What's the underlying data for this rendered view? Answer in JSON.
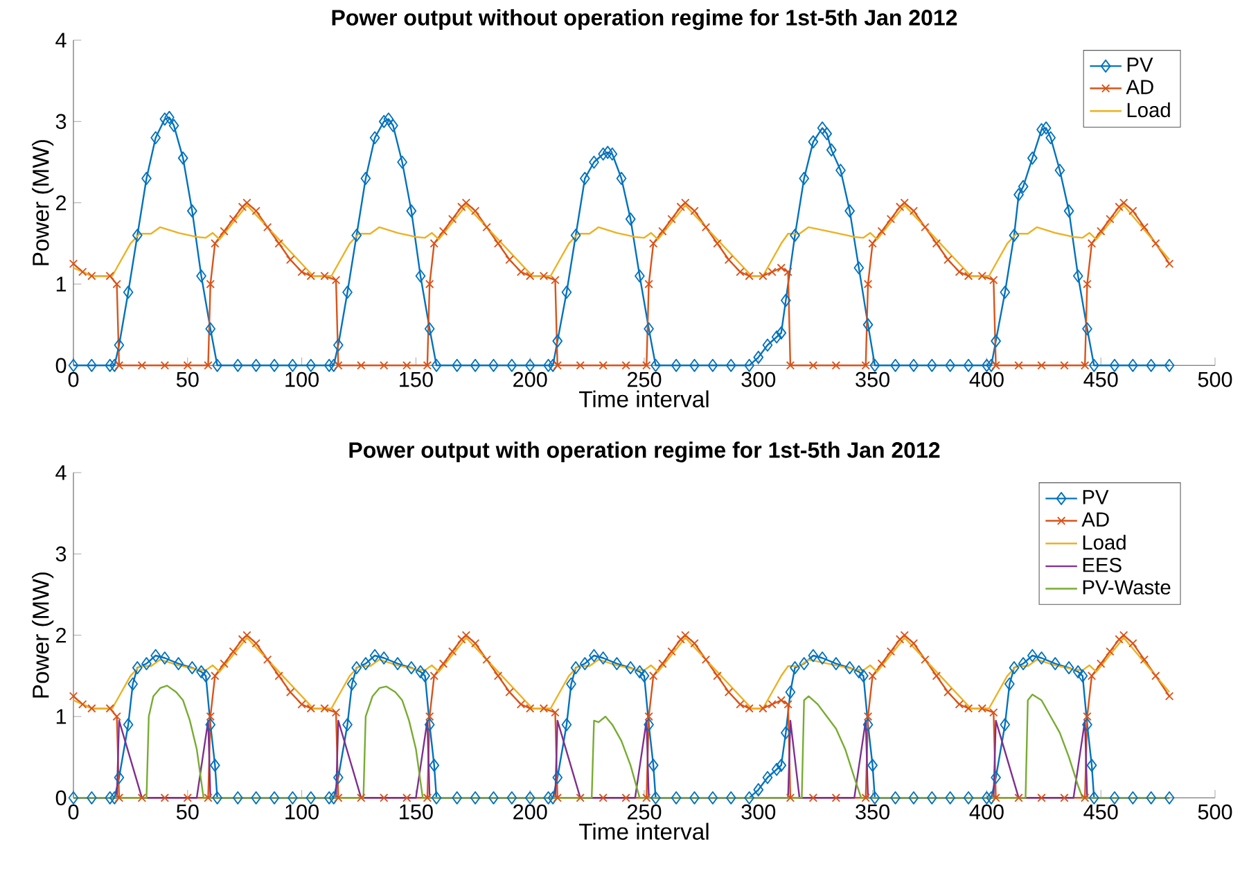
{
  "chart_data": [
    {
      "type": "line",
      "title": "Power output without operation regime for 1st-5th Jan 2012",
      "xlabel": "Time interval",
      "ylabel": "Power (MW)",
      "xlim": [
        0,
        500
      ],
      "xticks": [
        0,
        50,
        100,
        150,
        200,
        250,
        300,
        350,
        400,
        450,
        500
      ],
      "ylim": [
        0,
        4
      ],
      "yticks": [
        0,
        1,
        2,
        3,
        4
      ],
      "legend": "top right",
      "series": [
        {
          "name": "PV",
          "color": "#0072bd",
          "marker": "diamond",
          "x": [
            0,
            8,
            16,
            18,
            20,
            24,
            28,
            32,
            36,
            40,
            42,
            44,
            48,
            52,
            56,
            60,
            63,
            72,
            80,
            88,
            96,
            104,
            112,
            114,
            116,
            120,
            124,
            128,
            132,
            136,
            138,
            140,
            144,
            148,
            152,
            156,
            159,
            168,
            176,
            184,
            192,
            200,
            208,
            210,
            212,
            216,
            220,
            224,
            228,
            232,
            234,
            236,
            240,
            244,
            248,
            252,
            255,
            264,
            272,
            280,
            288,
            296,
            300,
            304,
            308,
            310,
            312,
            316,
            320,
            324,
            328,
            330,
            332,
            336,
            340,
            344,
            348,
            351,
            360,
            368,
            376,
            384,
            392,
            400,
            402,
            404,
            408,
            412,
            414,
            416,
            420,
            424,
            426,
            428,
            432,
            436,
            440,
            444,
            447,
            456,
            464,
            472,
            480
          ],
          "values": [
            0,
            0,
            0,
            0,
            0.25,
            0.9,
            1.6,
            2.3,
            2.8,
            3.03,
            3.05,
            2.95,
            2.55,
            1.9,
            1.1,
            0.45,
            0,
            0,
            0,
            0,
            0,
            0,
            0,
            0,
            0.25,
            0.9,
            1.6,
            2.3,
            2.8,
            3.0,
            3.03,
            2.95,
            2.5,
            1.9,
            1.1,
            0.45,
            0,
            0,
            0,
            0,
            0,
            0,
            0,
            0,
            0.3,
            0.9,
            1.6,
            2.3,
            2.5,
            2.6,
            2.62,
            2.6,
            2.3,
            1.8,
            1.1,
            0.45,
            0,
            0,
            0,
            0,
            0,
            0,
            0.1,
            0.25,
            0.35,
            0.4,
            0.8,
            1.6,
            2.3,
            2.75,
            2.92,
            2.85,
            2.65,
            2.4,
            1.9,
            1.2,
            0.5,
            0,
            0,
            0,
            0,
            0,
            0,
            0,
            0,
            0.3,
            0.9,
            1.6,
            2.1,
            2.2,
            2.55,
            2.9,
            2.92,
            2.8,
            2.4,
            1.9,
            1.1,
            0.45,
            0,
            0,
            0,
            0,
            0
          ]
        },
        {
          "name": "AD",
          "color": "#d95319",
          "marker": "cross",
          "x": [
            0,
            4,
            8,
            16,
            19,
            20,
            30,
            40,
            50,
            59,
            60,
            62,
            66,
            70,
            74,
            76,
            80,
            85,
            90,
            95,
            100,
            104,
            110,
            115,
            116,
            126,
            136,
            146,
            155,
            156,
            158,
            162,
            166,
            170,
            172,
            176,
            181,
            186,
            191,
            196,
            200,
            206,
            211,
            212,
            222,
            232,
            242,
            251,
            252,
            254,
            258,
            262,
            266,
            268,
            272,
            277,
            282,
            287,
            292,
            296,
            302,
            306,
            310,
            313,
            314,
            324,
            334,
            347,
            348,
            350,
            354,
            358,
            362,
            364,
            368,
            373,
            378,
            383,
            388,
            392,
            398,
            403,
            404,
            414,
            424,
            434,
            443,
            444,
            446,
            450,
            454,
            458,
            460,
            464,
            469,
            474,
            480
          ],
          "values": [
            1.25,
            1.15,
            1.1,
            1.1,
            1.0,
            0,
            0,
            0,
            0,
            0,
            1.0,
            1.5,
            1.65,
            1.8,
            1.95,
            2.0,
            1.9,
            1.7,
            1.5,
            1.3,
            1.15,
            1.1,
            1.1,
            1.05,
            0,
            0,
            0,
            0,
            0,
            1.0,
            1.5,
            1.65,
            1.8,
            1.95,
            2.0,
            1.9,
            1.7,
            1.5,
            1.3,
            1.15,
            1.1,
            1.1,
            1.05,
            0,
            0,
            0,
            0,
            0,
            1.0,
            1.5,
            1.65,
            1.8,
            1.95,
            2.0,
            1.9,
            1.7,
            1.5,
            1.3,
            1.15,
            1.1,
            1.1,
            1.15,
            1.2,
            1.15,
            0,
            0,
            0,
            0,
            1.0,
            1.5,
            1.65,
            1.8,
            1.95,
            2.0,
            1.9,
            1.7,
            1.5,
            1.3,
            1.15,
            1.1,
            1.1,
            1.05,
            0,
            0,
            0,
            0,
            0,
            1.0,
            1.5,
            1.65,
            1.8,
            1.95,
            2.0,
            1.9,
            1.7,
            1.5,
            1.25
          ]
        },
        {
          "name": "Load",
          "color": "#edb120",
          "marker": "none",
          "x": [
            0,
            8,
            17,
            21,
            25,
            29,
            34,
            38,
            46,
            54,
            58,
            61,
            64,
            76,
            105,
            113,
            117,
            121,
            125,
            130,
            134,
            142,
            150,
            154,
            157,
            160,
            172,
            201,
            209,
            213,
            217,
            221,
            226,
            230,
            238,
            246,
            250,
            253,
            256,
            268,
            297,
            302,
            306,
            310,
            313,
            318,
            322,
            334,
            342,
            346,
            349,
            352,
            364,
            393,
            401,
            405,
            409,
            413,
            418,
            422,
            430,
            438,
            442,
            445,
            448,
            460,
            480
          ],
          "values": [
            1.2,
            1.1,
            1.1,
            1.3,
            1.5,
            1.62,
            1.62,
            1.7,
            1.63,
            1.58,
            1.57,
            1.63,
            1.55,
            1.97,
            1.1,
            1.1,
            1.3,
            1.5,
            1.62,
            1.62,
            1.7,
            1.63,
            1.58,
            1.57,
            1.63,
            1.55,
            1.97,
            1.1,
            1.1,
            1.3,
            1.5,
            1.62,
            1.62,
            1.7,
            1.63,
            1.58,
            1.57,
            1.63,
            1.55,
            1.97,
            1.1,
            1.1,
            1.3,
            1.5,
            1.62,
            1.62,
            1.7,
            1.63,
            1.58,
            1.57,
            1.63,
            1.55,
            1.97,
            1.1,
            1.1,
            1.3,
            1.5,
            1.62,
            1.62,
            1.7,
            1.63,
            1.58,
            1.57,
            1.63,
            1.55,
            1.97,
            1.3
          ]
        }
      ]
    },
    {
      "type": "line",
      "title": "Power output with operation regime for 1st-5th Jan 2012",
      "xlabel": "Time interval",
      "ylabel": "Power (MW)",
      "xlim": [
        0,
        500
      ],
      "xticks": [
        0,
        50,
        100,
        150,
        200,
        250,
        300,
        350,
        400,
        450,
        500
      ],
      "ylim": [
        0,
        4
      ],
      "yticks": [
        0,
        1,
        2,
        3,
        4
      ],
      "legend": "top right",
      "series": [
        {
          "name": "PV",
          "color": "#0072bd",
          "marker": "diamond",
          "x": [
            0,
            8,
            16,
            18,
            20,
            24,
            26,
            28,
            32,
            36,
            40,
            46,
            52,
            56,
            58,
            60,
            62,
            63,
            72,
            80,
            88,
            96,
            104,
            112,
            114,
            116,
            120,
            122,
            124,
            128,
            132,
            136,
            142,
            148,
            152,
            154,
            156,
            158,
            159,
            168,
            176,
            184,
            192,
            200,
            208,
            210,
            212,
            216,
            218,
            220,
            224,
            228,
            232,
            238,
            244,
            248,
            250,
            252,
            254,
            255,
            264,
            272,
            280,
            288,
            296,
            300,
            304,
            308,
            310,
            312,
            314,
            316,
            320,
            324,
            328,
            334,
            340,
            344,
            346,
            348,
            350,
            351,
            360,
            368,
            376,
            384,
            392,
            400,
            402,
            404,
            408,
            410,
            412,
            416,
            420,
            424,
            430,
            436,
            440,
            442,
            444,
            446,
            447,
            456,
            464,
            472,
            480
          ],
          "values": [
            0,
            0,
            0,
            0,
            0.25,
            0.9,
            1.4,
            1.6,
            1.65,
            1.75,
            1.72,
            1.65,
            1.6,
            1.55,
            1.5,
            0.9,
            0.4,
            0,
            0,
            0,
            0,
            0,
            0,
            0,
            0,
            0.25,
            0.9,
            1.4,
            1.6,
            1.65,
            1.75,
            1.72,
            1.65,
            1.6,
            1.55,
            1.5,
            0.9,
            0.4,
            0,
            0,
            0,
            0,
            0,
            0,
            0,
            0,
            0.25,
            0.9,
            1.4,
            1.6,
            1.65,
            1.75,
            1.72,
            1.65,
            1.6,
            1.55,
            1.5,
            0.9,
            0.4,
            0,
            0,
            0,
            0,
            0,
            0,
            0.1,
            0.25,
            0.35,
            0.4,
            0.8,
            1.3,
            1.6,
            1.65,
            1.75,
            1.72,
            1.65,
            1.6,
            1.55,
            1.5,
            0.9,
            0.4,
            0,
            0,
            0,
            0,
            0,
            0,
            0,
            0,
            0.25,
            0.9,
            1.4,
            1.6,
            1.65,
            1.75,
            1.72,
            1.65,
            1.6,
            1.55,
            1.5,
            0.9,
            0.4,
            0,
            0,
            0,
            0,
            0
          ]
        },
        {
          "name": "AD",
          "color": "#d95319",
          "marker": "cross",
          "x": [
            0,
            4,
            8,
            16,
            19,
            20,
            30,
            40,
            50,
            59,
            60,
            62,
            66,
            70,
            74,
            76,
            80,
            85,
            90,
            95,
            100,
            104,
            110,
            115,
            116,
            126,
            136,
            146,
            155,
            156,
            158,
            162,
            166,
            170,
            172,
            176,
            181,
            186,
            191,
            196,
            200,
            206,
            211,
            212,
            222,
            232,
            242,
            251,
            252,
            254,
            258,
            262,
            266,
            268,
            272,
            277,
            282,
            287,
            292,
            296,
            302,
            306,
            310,
            313,
            314,
            324,
            334,
            347,
            348,
            350,
            354,
            358,
            362,
            364,
            368,
            373,
            378,
            383,
            388,
            392,
            398,
            403,
            404,
            414,
            424,
            434,
            443,
            444,
            446,
            450,
            454,
            458,
            460,
            464,
            469,
            474,
            480
          ],
          "values": [
            1.25,
            1.15,
            1.1,
            1.1,
            1.0,
            0,
            0,
            0,
            0,
            0,
            1.0,
            1.5,
            1.65,
            1.8,
            1.95,
            2.0,
            1.9,
            1.7,
            1.5,
            1.3,
            1.15,
            1.1,
            1.1,
            1.05,
            0,
            0,
            0,
            0,
            0,
            1.0,
            1.5,
            1.65,
            1.8,
            1.95,
            2.0,
            1.9,
            1.7,
            1.5,
            1.3,
            1.15,
            1.1,
            1.1,
            1.05,
            0,
            0,
            0,
            0,
            0,
            1.0,
            1.5,
            1.65,
            1.8,
            1.95,
            2.0,
            1.9,
            1.7,
            1.5,
            1.3,
            1.15,
            1.1,
            1.1,
            1.15,
            1.2,
            1.15,
            0,
            0,
            0,
            0,
            1.0,
            1.5,
            1.65,
            1.8,
            1.95,
            2.0,
            1.9,
            1.7,
            1.5,
            1.3,
            1.15,
            1.1,
            1.1,
            1.05,
            0,
            0,
            0,
            0,
            0,
            1.0,
            1.5,
            1.65,
            1.8,
            1.95,
            2.0,
            1.9,
            1.7,
            1.5,
            1.25
          ]
        },
        {
          "name": "Load",
          "color": "#edb120",
          "marker": "none",
          "x": [
            0,
            8,
            17,
            21,
            25,
            29,
            34,
            38,
            46,
            54,
            58,
            61,
            64,
            76,
            105,
            113,
            117,
            121,
            125,
            130,
            134,
            142,
            150,
            154,
            157,
            160,
            172,
            201,
            209,
            213,
            217,
            221,
            226,
            230,
            238,
            246,
            250,
            253,
            256,
            268,
            297,
            302,
            306,
            310,
            313,
            318,
            322,
            334,
            342,
            346,
            349,
            352,
            364,
            393,
            401,
            405,
            409,
            413,
            418,
            422,
            430,
            438,
            442,
            445,
            448,
            460,
            480
          ],
          "values": [
            1.2,
            1.1,
            1.1,
            1.3,
            1.5,
            1.62,
            1.62,
            1.7,
            1.63,
            1.58,
            1.57,
            1.63,
            1.55,
            1.97,
            1.1,
            1.1,
            1.3,
            1.5,
            1.62,
            1.62,
            1.7,
            1.63,
            1.58,
            1.57,
            1.63,
            1.55,
            1.97,
            1.1,
            1.1,
            1.3,
            1.5,
            1.62,
            1.62,
            1.7,
            1.63,
            1.58,
            1.57,
            1.63,
            1.55,
            1.97,
            1.1,
            1.1,
            1.3,
            1.5,
            1.62,
            1.62,
            1.7,
            1.63,
            1.58,
            1.57,
            1.63,
            1.55,
            1.97,
            1.1,
            1.1,
            1.3,
            1.5,
            1.62,
            1.62,
            1.7,
            1.63,
            1.58,
            1.57,
            1.63,
            1.55,
            1.97,
            1.3
          ]
        },
        {
          "name": "EES",
          "color": "#7e2f8e",
          "marker": "none",
          "x": [
            0,
            19,
            20,
            30,
            54,
            59,
            60,
            115,
            116,
            126,
            150,
            155,
            156,
            211,
            212,
            222,
            246,
            251,
            252,
            313,
            314,
            318,
            342,
            347,
            348,
            403,
            404,
            414,
            438,
            443,
            444,
            480
          ],
          "values": [
            0,
            0,
            0.95,
            0,
            0,
            0.95,
            0,
            0,
            0.95,
            0,
            0,
            0.95,
            0,
            0,
            0.95,
            0,
            0,
            0.95,
            0,
            0,
            0.95,
            0,
            0,
            0.95,
            0,
            0,
            0.95,
            0,
            0,
            0.95,
            0,
            0
          ]
        },
        {
          "name": "PV-Waste",
          "color": "#77ac30",
          "marker": "none",
          "x": [
            0,
            32,
            33,
            35,
            38,
            41,
            45,
            48,
            51,
            54,
            57,
            127,
            128,
            131,
            134,
            137,
            141,
            144,
            147,
            150,
            153,
            227,
            228,
            230,
            233,
            236,
            240,
            244,
            248,
            319,
            320,
            322,
            326,
            330,
            334,
            338,
            342,
            345,
            417,
            418,
            420,
            424,
            428,
            432,
            436,
            440,
            442,
            480
          ],
          "values": [
            0,
            0,
            1.0,
            1.25,
            1.35,
            1.38,
            1.3,
            1.2,
            0.95,
            0.6,
            0,
            0,
            1.0,
            1.25,
            1.35,
            1.37,
            1.3,
            1.2,
            0.95,
            0.6,
            0,
            0,
            0.95,
            0.93,
            1.0,
            0.9,
            0.7,
            0.4,
            0,
            0,
            1.2,
            1.25,
            1.15,
            1.0,
            0.85,
            0.6,
            0.25,
            0,
            0,
            1.2,
            1.27,
            1.2,
            1.0,
            0.8,
            0.5,
            0.15,
            0,
            0
          ]
        }
      ]
    }
  ]
}
